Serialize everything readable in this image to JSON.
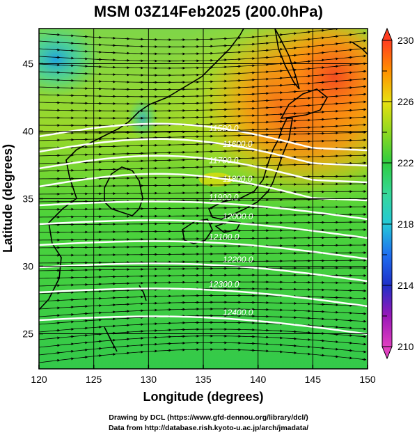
{
  "title": "MSM 03Z14Feb2025 (200.0hPa)",
  "axes": {
    "xlabel": "Longitude (degrees)",
    "ylabel": "Latitude  (degrees)",
    "x_range": [
      120,
      150
    ],
    "y_range": [
      22.4,
      47.6
    ],
    "x_ticks": [
      "120",
      "125",
      "130",
      "135",
      "140",
      "145",
      "150"
    ],
    "y_ticks": [
      "25",
      "30",
      "35",
      "40",
      "45"
    ]
  },
  "colorbar": {
    "range": [
      210,
      230
    ],
    "tick_labels": [
      "230",
      "226",
      "222",
      "218",
      "214",
      "210"
    ],
    "colors": {
      "210": "#e040c0",
      "212": "#9a18b8",
      "214": "#1f2fc8",
      "216": "#1f6ff0",
      "218": "#24c8d8",
      "220": "#36d898",
      "222": "#2ecc40",
      "224": "#8ed820",
      "226": "#e8e010",
      "228": "#ff9000",
      "230": "#ff3d20"
    }
  },
  "contour_labels": [
    "11500.0",
    "11600.0",
    "11700.0",
    "11800.0",
    "11900.0",
    "12000.0",
    "12100.0",
    "12200.0",
    "12300.0",
    "12400.0"
  ],
  "footer": {
    "line1": "Drawing by DCL (https://www.gfd-dennou.org/library/dcl/)",
    "line2": "Data from http://database.rish.kyoto-u.ac.jp/arch/jmadata/"
  }
}
